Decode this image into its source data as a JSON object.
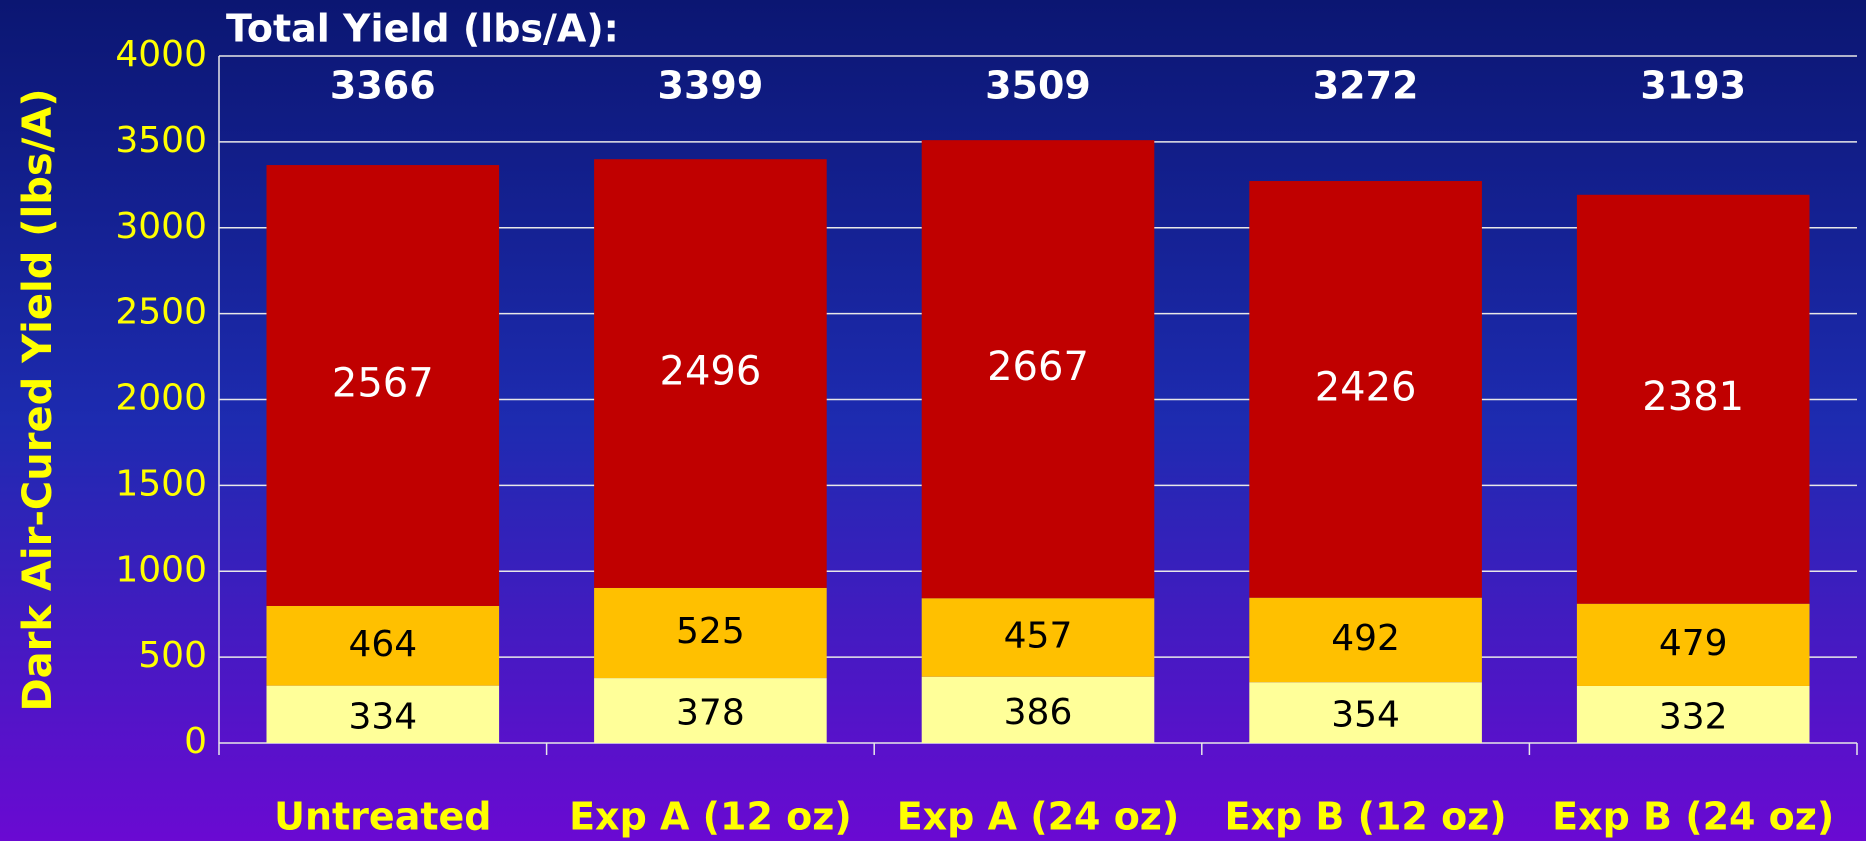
{
  "chart_data": {
    "type": "bar",
    "stacked": true,
    "annotation": "Total Yield (lbs/A):",
    "y_label": "Dark Air-Cured Yield (lbs/A)",
    "categories": [
      "Untreated",
      "Exp A (12 oz)",
      "Exp A (24 oz)",
      "Exp B (12 oz)",
      "Exp B (24 oz)"
    ],
    "series": [
      {
        "color": "#FFFF99",
        "values": [
          334,
          378,
          386,
          354,
          332
        ]
      },
      {
        "color": "#FFC000",
        "values": [
          464,
          525,
          457,
          492,
          479
        ]
      },
      {
        "color": "#C00000",
        "values": [
          2567,
          2496,
          2667,
          2426,
          2381
        ]
      }
    ],
    "totals": [
      3366,
      3399,
      3509,
      3272,
      3193
    ],
    "ylim": [
      0,
      4000
    ],
    "yticks": [
      0,
      500,
      1000,
      1500,
      2000,
      2500,
      3000,
      3500,
      4000
    ],
    "grid": true
  }
}
